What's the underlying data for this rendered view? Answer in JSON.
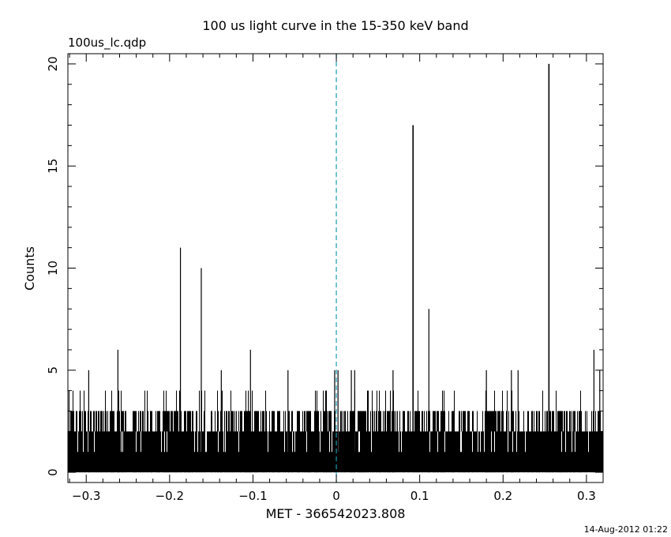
{
  "chart_data": {
    "type": "bar",
    "title": "100 us light curve in the 15-350 keV band",
    "subtitle": "100us_lc.qdp",
    "xlabel": "MET - 366542023.808",
    "ylabel": "Counts",
    "footer": "14-Aug-2012 01:22",
    "xlim": [
      -0.322,
      0.32
    ],
    "ylim": [
      -0.5,
      20.5
    ],
    "x_ticks": [
      -0.3,
      -0.2,
      -0.1,
      0,
      0.1,
      0.2,
      0.3
    ],
    "x_tick_labels": [
      "−0.3",
      "−0.2",
      "−0.1",
      "0",
      "0.1",
      "0.2",
      "0.3"
    ],
    "y_ticks": [
      0,
      5,
      10,
      15,
      20
    ],
    "y_tick_labels": [
      "0",
      "5",
      "10",
      "15",
      "20"
    ],
    "bin_width": 0.0001,
    "baseline_level": 2,
    "grid": false,
    "reference_line": {
      "x": 0,
      "style": "dashed",
      "color": "#1a9bb0"
    },
    "bar_color": "#000000",
    "spikes": {
      "x": [
        -0.297,
        -0.262,
        -0.187,
        -0.162,
        -0.138,
        -0.103,
        -0.058,
        -0.002,
        0.002,
        0.018,
        0.022,
        0.068,
        0.092,
        0.111,
        0.18,
        0.21,
        0.218,
        0.255,
        0.309,
        0.316
      ],
      "values": [
        5,
        6,
        11,
        10,
        5,
        6,
        5,
        5,
        5,
        5,
        5,
        5,
        17,
        8,
        5,
        5,
        5,
        20,
        6,
        5
      ]
    }
  }
}
